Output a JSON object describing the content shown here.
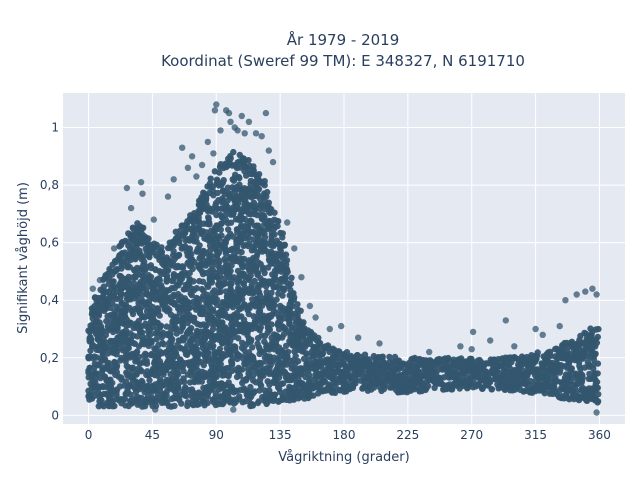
{
  "chart_data": {
    "type": "scatter",
    "title_line1": "År 1979 - 2019",
    "title_line2": "Koordinat (Sweref 99 TM): E 348327, N 6191710",
    "xlabel": "Vågriktning (grader)",
    "ylabel": "Signifikant våghöjd (m)",
    "xlim": [
      -18,
      378
    ],
    "ylim": [
      -0.03,
      1.12
    ],
    "x_ticks": [
      0,
      45,
      90,
      135,
      180,
      225,
      270,
      315,
      360
    ],
    "x_tick_labels": [
      "0",
      "45",
      "90",
      "135",
      "180",
      "225",
      "270",
      "315",
      "360"
    ],
    "y_ticks": [
      0,
      0.2,
      0.4,
      0.6,
      0.8,
      1
    ],
    "y_tick_labels": [
      "0",
      "0,2",
      "0,4",
      "0,6",
      "0,8",
      "1"
    ],
    "grid": true,
    "marker_color": "#34566f",
    "plot_bg": "#e5e9f2",
    "envelope": {
      "direction": [
        0,
        5,
        15,
        25,
        35,
        45,
        55,
        65,
        75,
        85,
        95,
        105,
        115,
        125,
        135,
        145,
        155,
        165,
        175,
        185,
        200,
        225,
        250,
        270,
        290,
        310,
        330,
        345,
        360
      ],
      "upper_height": [
        0.3,
        0.42,
        0.52,
        0.62,
        0.68,
        0.6,
        0.58,
        0.66,
        0.72,
        0.82,
        0.9,
        0.92,
        0.88,
        0.8,
        0.66,
        0.42,
        0.3,
        0.26,
        0.24,
        0.22,
        0.21,
        0.2,
        0.2,
        0.2,
        0.2,
        0.21,
        0.24,
        0.28,
        0.32
      ],
      "lower_height": [
        0.03,
        0.03,
        0.03,
        0.03,
        0.03,
        0.03,
        0.03,
        0.03,
        0.03,
        0.03,
        0.03,
        0.03,
        0.03,
        0.04,
        0.04,
        0.05,
        0.06,
        0.07,
        0.08,
        0.08,
        0.08,
        0.08,
        0.09,
        0.09,
        0.09,
        0.08,
        0.06,
        0.05,
        0.04
      ]
    },
    "outliers": [
      {
        "x": 3,
        "y": 0.44
      },
      {
        "x": 8,
        "y": 0.47
      },
      {
        "x": 18,
        "y": 0.58
      },
      {
        "x": 27,
        "y": 0.79
      },
      {
        "x": 30,
        "y": 0.72
      },
      {
        "x": 37,
        "y": 0.81
      },
      {
        "x": 38,
        "y": 0.77
      },
      {
        "x": 46,
        "y": 0.68
      },
      {
        "x": 56,
        "y": 0.76
      },
      {
        "x": 60,
        "y": 0.82
      },
      {
        "x": 66,
        "y": 0.93
      },
      {
        "x": 70,
        "y": 0.86
      },
      {
        "x": 73,
        "y": 0.9
      },
      {
        "x": 76,
        "y": 0.83
      },
      {
        "x": 80,
        "y": 0.87
      },
      {
        "x": 84,
        "y": 0.95
      },
      {
        "x": 88,
        "y": 0.91
      },
      {
        "x": 89,
        "y": 1.06
      },
      {
        "x": 90,
        "y": 1.08
      },
      {
        "x": 93,
        "y": 0.99
      },
      {
        "x": 97,
        "y": 1.06
      },
      {
        "x": 99,
        "y": 1.05
      },
      {
        "x": 100,
        "y": 1.02
      },
      {
        "x": 103,
        "y": 1.0
      },
      {
        "x": 105,
        "y": 0.99
      },
      {
        "x": 108,
        "y": 1.04
      },
      {
        "x": 110,
        "y": 0.98
      },
      {
        "x": 113,
        "y": 1.02
      },
      {
        "x": 118,
        "y": 0.98
      },
      {
        "x": 122,
        "y": 0.97
      },
      {
        "x": 125,
        "y": 1.05
      },
      {
        "x": 127,
        "y": 0.92
      },
      {
        "x": 130,
        "y": 0.88
      },
      {
        "x": 140,
        "y": 0.67
      },
      {
        "x": 145,
        "y": 0.58
      },
      {
        "x": 150,
        "y": 0.48
      },
      {
        "x": 156,
        "y": 0.38
      },
      {
        "x": 160,
        "y": 0.34
      },
      {
        "x": 170,
        "y": 0.3
      },
      {
        "x": 178,
        "y": 0.31
      },
      {
        "x": 190,
        "y": 0.27
      },
      {
        "x": 205,
        "y": 0.25
      },
      {
        "x": 240,
        "y": 0.22
      },
      {
        "x": 262,
        "y": 0.24
      },
      {
        "x": 270,
        "y": 0.23
      },
      {
        "x": 271,
        "y": 0.29
      },
      {
        "x": 283,
        "y": 0.26
      },
      {
        "x": 294,
        "y": 0.33
      },
      {
        "x": 300,
        "y": 0.24
      },
      {
        "x": 315,
        "y": 0.3
      },
      {
        "x": 320,
        "y": 0.28
      },
      {
        "x": 332,
        "y": 0.31
      },
      {
        "x": 336,
        "y": 0.4
      },
      {
        "x": 344,
        "y": 0.42
      },
      {
        "x": 350,
        "y": 0.43
      },
      {
        "x": 355,
        "y": 0.44
      },
      {
        "x": 358,
        "y": 0.42
      },
      {
        "x": 358,
        "y": 0.01
      },
      {
        "x": 47,
        "y": 0.02
      },
      {
        "x": 102,
        "y": 0.02
      }
    ]
  }
}
